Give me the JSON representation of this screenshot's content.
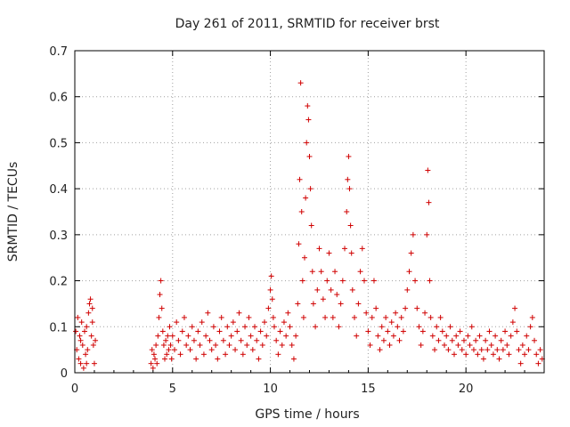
{
  "chart_data": {
    "type": "scatter",
    "title": "Day 261 of 2011, SRMTID for receiver brst",
    "xlabel": "GPS time / hours",
    "ylabel": "SRMTID / TECUs",
    "xlim": [
      0,
      24
    ],
    "ylim": [
      0,
      0.7
    ],
    "xticks": [
      0,
      5,
      10,
      15,
      20
    ],
    "xtick_labels": [
      "0",
      "5",
      "10",
      "15",
      "20"
    ],
    "yticks": [
      0,
      0.1,
      0.2,
      0.3,
      0.4,
      0.5,
      0.6,
      0.7
    ],
    "ytick_labels": [
      "0",
      "0.1",
      "0.2",
      "0.3",
      "0.4",
      "0.5",
      "0.6",
      "0.7"
    ],
    "grid": true,
    "marker": "+",
    "marker_color": "#d00000",
    "series": [
      {
        "name": "SRMTID",
        "points": [
          [
            0.05,
            0.09
          ],
          [
            0.1,
            0.05
          ],
          [
            0.15,
            0.12
          ],
          [
            0.2,
            0.03
          ],
          [
            0.25,
            0.08
          ],
          [
            0.3,
            0.02
          ],
          [
            0.35,
            0.11
          ],
          [
            0.4,
            0.06
          ],
          [
            0.45,
            0.01
          ],
          [
            0.5,
            0.09
          ],
          [
            0.55,
            0.04
          ],
          [
            0.6,
            0.1
          ],
          [
            0.65,
            0.05
          ],
          [
            0.7,
            0.13
          ],
          [
            0.75,
            0.15
          ],
          [
            0.8,
            0.16
          ],
          [
            0.85,
            0.08
          ],
          [
            0.9,
            0.14
          ],
          [
            0.95,
            0.06
          ],
          [
            1.0,
            0.02
          ],
          [
            1.05,
            0.07
          ],
          [
            0.6,
            0.02
          ],
          [
            0.3,
            0.07
          ],
          [
            0.9,
            0.11
          ],
          [
            3.9,
            0.02
          ],
          [
            3.95,
            0.05
          ],
          [
            4.0,
            0.01
          ],
          [
            4.05,
            0.04
          ],
          [
            4.1,
            0.03
          ],
          [
            4.15,
            0.06
          ],
          [
            4.2,
            0.02
          ],
          [
            4.25,
            0.08
          ],
          [
            4.3,
            0.12
          ],
          [
            4.35,
            0.17
          ],
          [
            4.4,
            0.2
          ],
          [
            4.45,
            0.14
          ],
          [
            4.5,
            0.09
          ],
          [
            4.55,
            0.06
          ],
          [
            4.6,
            0.03
          ],
          [
            4.65,
            0.07
          ],
          [
            4.7,
            0.04
          ],
          [
            4.75,
            0.08
          ],
          [
            4.8,
            0.05
          ],
          [
            4.85,
            0.1
          ],
          [
            4.9,
            0.06
          ],
          [
            4.95,
            0.03
          ],
          [
            5.0,
            0.08
          ],
          [
            5.1,
            0.05
          ],
          [
            5.2,
            0.11
          ],
          [
            5.3,
            0.07
          ],
          [
            5.4,
            0.04
          ],
          [
            5.5,
            0.09
          ],
          [
            5.6,
            0.12
          ],
          [
            5.7,
            0.06
          ],
          [
            5.8,
            0.08
          ],
          [
            5.9,
            0.05
          ],
          [
            6.0,
            0.1
          ],
          [
            6.1,
            0.07
          ],
          [
            6.2,
            0.03
          ],
          [
            6.3,
            0.09
          ],
          [
            6.4,
            0.06
          ],
          [
            6.5,
            0.11
          ],
          [
            6.6,
            0.04
          ],
          [
            6.7,
            0.08
          ],
          [
            6.8,
            0.13
          ],
          [
            6.9,
            0.07
          ],
          [
            7.0,
            0.05
          ],
          [
            7.1,
            0.1
          ],
          [
            7.2,
            0.06
          ],
          [
            7.3,
            0.03
          ],
          [
            7.4,
            0.09
          ],
          [
            7.5,
            0.12
          ],
          [
            7.6,
            0.07
          ],
          [
            7.7,
            0.04
          ],
          [
            7.8,
            0.1
          ],
          [
            7.9,
            0.06
          ],
          [
            8.0,
            0.08
          ],
          [
            8.1,
            0.11
          ],
          [
            8.2,
            0.05
          ],
          [
            8.3,
            0.09
          ],
          [
            8.4,
            0.13
          ],
          [
            8.5,
            0.07
          ],
          [
            8.6,
            0.04
          ],
          [
            8.7,
            0.1
          ],
          [
            8.8,
            0.06
          ],
          [
            8.9,
            0.12
          ],
          [
            9.0,
            0.08
          ],
          [
            9.1,
            0.05
          ],
          [
            9.2,
            0.1
          ],
          [
            9.3,
            0.07
          ],
          [
            9.4,
            0.03
          ],
          [
            9.5,
            0.09
          ],
          [
            9.6,
            0.06
          ],
          [
            9.7,
            0.11
          ],
          [
            9.8,
            0.08
          ],
          [
            9.9,
            0.14
          ],
          [
            10.0,
            0.18
          ],
          [
            10.05,
            0.21
          ],
          [
            10.1,
            0.16
          ],
          [
            10.15,
            0.12
          ],
          [
            10.2,
            0.1
          ],
          [
            10.3,
            0.07
          ],
          [
            10.4,
            0.04
          ],
          [
            10.5,
            0.09
          ],
          [
            10.6,
            0.06
          ],
          [
            10.7,
            0.11
          ],
          [
            10.8,
            0.08
          ],
          [
            10.9,
            0.13
          ],
          [
            11.0,
            0.1
          ],
          [
            11.1,
            0.06
          ],
          [
            11.2,
            0.03
          ],
          [
            11.3,
            0.08
          ],
          [
            11.4,
            0.15
          ],
          [
            11.45,
            0.28
          ],
          [
            11.5,
            0.42
          ],
          [
            11.55,
            0.63
          ],
          [
            11.6,
            0.35
          ],
          [
            11.65,
            0.2
          ],
          [
            11.7,
            0.12
          ],
          [
            11.75,
            0.25
          ],
          [
            11.8,
            0.38
          ],
          [
            11.85,
            0.5
          ],
          [
            11.9,
            0.58
          ],
          [
            11.95,
            0.55
          ],
          [
            12.0,
            0.47
          ],
          [
            12.05,
            0.4
          ],
          [
            12.1,
            0.32
          ],
          [
            12.15,
            0.22
          ],
          [
            12.2,
            0.15
          ],
          [
            12.3,
            0.1
          ],
          [
            12.4,
            0.18
          ],
          [
            12.5,
            0.27
          ],
          [
            12.6,
            0.22
          ],
          [
            12.7,
            0.16
          ],
          [
            12.8,
            0.12
          ],
          [
            12.9,
            0.2
          ],
          [
            13.0,
            0.26
          ],
          [
            13.1,
            0.18
          ],
          [
            13.2,
            0.12
          ],
          [
            13.3,
            0.22
          ],
          [
            13.4,
            0.17
          ],
          [
            13.5,
            0.1
          ],
          [
            13.6,
            0.15
          ],
          [
            13.7,
            0.2
          ],
          [
            13.8,
            0.27
          ],
          [
            13.9,
            0.35
          ],
          [
            13.95,
            0.42
          ],
          [
            14.0,
            0.47
          ],
          [
            14.05,
            0.4
          ],
          [
            14.1,
            0.32
          ],
          [
            14.15,
            0.26
          ],
          [
            14.2,
            0.18
          ],
          [
            14.3,
            0.12
          ],
          [
            14.4,
            0.08
          ],
          [
            14.5,
            0.15
          ],
          [
            14.6,
            0.22
          ],
          [
            14.7,
            0.27
          ],
          [
            14.8,
            0.2
          ],
          [
            14.9,
            0.13
          ],
          [
            15.0,
            0.09
          ],
          [
            15.1,
            0.06
          ],
          [
            15.2,
            0.12
          ],
          [
            15.3,
            0.2
          ],
          [
            15.4,
            0.14
          ],
          [
            15.5,
            0.08
          ],
          [
            15.6,
            0.05
          ],
          [
            15.7,
            0.1
          ],
          [
            15.8,
            0.07
          ],
          [
            15.9,
            0.12
          ],
          [
            16.0,
            0.09
          ],
          [
            16.1,
            0.06
          ],
          [
            16.2,
            0.11
          ],
          [
            16.3,
            0.08
          ],
          [
            16.4,
            0.13
          ],
          [
            16.5,
            0.1
          ],
          [
            16.6,
            0.07
          ],
          [
            16.7,
            0.12
          ],
          [
            16.8,
            0.09
          ],
          [
            16.9,
            0.14
          ],
          [
            17.0,
            0.18
          ],
          [
            17.1,
            0.22
          ],
          [
            17.2,
            0.26
          ],
          [
            17.3,
            0.3
          ],
          [
            17.4,
            0.2
          ],
          [
            17.5,
            0.14
          ],
          [
            17.6,
            0.1
          ],
          [
            17.7,
            0.06
          ],
          [
            17.8,
            0.09
          ],
          [
            17.9,
            0.13
          ],
          [
            18.0,
            0.3
          ],
          [
            18.05,
            0.44
          ],
          [
            18.1,
            0.37
          ],
          [
            18.15,
            0.2
          ],
          [
            18.2,
            0.12
          ],
          [
            18.3,
            0.08
          ],
          [
            18.4,
            0.05
          ],
          [
            18.5,
            0.1
          ],
          [
            18.6,
            0.07
          ],
          [
            18.7,
            0.12
          ],
          [
            18.8,
            0.09
          ],
          [
            18.9,
            0.06
          ],
          [
            19.0,
            0.08
          ],
          [
            19.1,
            0.05
          ],
          [
            19.2,
            0.1
          ],
          [
            19.3,
            0.07
          ],
          [
            19.4,
            0.04
          ],
          [
            19.5,
            0.08
          ],
          [
            19.6,
            0.06
          ],
          [
            19.7,
            0.09
          ],
          [
            19.8,
            0.05
          ],
          [
            19.9,
            0.07
          ],
          [
            20.0,
            0.04
          ],
          [
            20.1,
            0.08
          ],
          [
            20.2,
            0.06
          ],
          [
            20.3,
            0.1
          ],
          [
            20.4,
            0.05
          ],
          [
            20.5,
            0.07
          ],
          [
            20.6,
            0.04
          ],
          [
            20.7,
            0.08
          ],
          [
            20.8,
            0.05
          ],
          [
            20.9,
            0.03
          ],
          [
            21.0,
            0.07
          ],
          [
            21.1,
            0.05
          ],
          [
            21.2,
            0.09
          ],
          [
            21.3,
            0.06
          ],
          [
            21.4,
            0.04
          ],
          [
            21.5,
            0.08
          ],
          [
            21.6,
            0.05
          ],
          [
            21.7,
            0.03
          ],
          [
            21.8,
            0.07
          ],
          [
            21.9,
            0.05
          ],
          [
            22.0,
            0.09
          ],
          [
            22.1,
            0.06
          ],
          [
            22.2,
            0.04
          ],
          [
            22.3,
            0.08
          ],
          [
            22.4,
            0.11
          ],
          [
            22.5,
            0.14
          ],
          [
            22.6,
            0.09
          ],
          [
            22.7,
            0.05
          ],
          [
            22.8,
            0.02
          ],
          [
            22.9,
            0.06
          ],
          [
            23.0,
            0.04
          ],
          [
            23.1,
            0.08
          ],
          [
            23.2,
            0.05
          ],
          [
            23.3,
            0.1
          ],
          [
            23.4,
            0.12
          ],
          [
            23.5,
            0.07
          ],
          [
            23.6,
            0.04
          ],
          [
            23.7,
            0.02
          ],
          [
            23.8,
            0.05
          ],
          [
            23.9,
            0.03
          ]
        ]
      }
    ]
  }
}
